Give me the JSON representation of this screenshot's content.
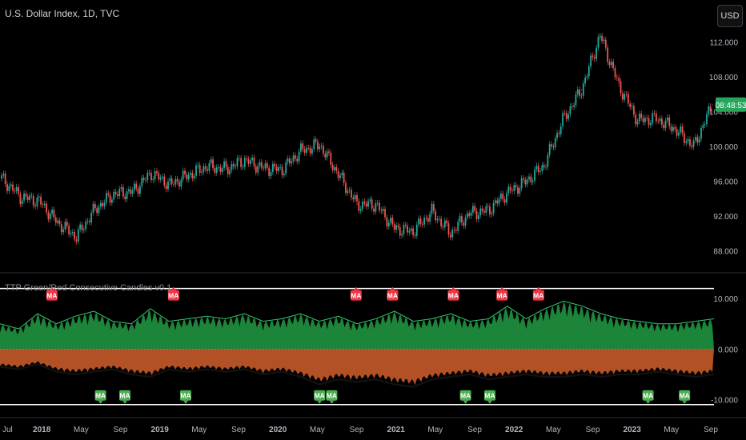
{
  "header": {
    "title": "U.S. Dollar Index, 1D, TVC",
    "currency_button": "USD",
    "indicator_title": "TTP Green/Red Consecutive Candles v0.1",
    "last_price_label": "08:48:53"
  },
  "colors": {
    "background": "#000000",
    "up": "#26a69a",
    "down": "#ef5350",
    "green_area": "#1e8c3c",
    "red_area": "#c65a2a",
    "ma_green": "#4caf50",
    "ma_red": "#f23645",
    "price_tag": "#26a65b"
  },
  "chart_data": [
    {
      "type": "line",
      "title": "U.S. Dollar Index, 1D, TVC",
      "x_ticks": [
        "Jul",
        "2018",
        "May",
        "Sep",
        "2019",
        "May",
        "Sep",
        "2020",
        "May",
        "Sep",
        "2021",
        "May",
        "Sep",
        "2022",
        "May",
        "Sep",
        "2023",
        "May",
        "Sep"
      ],
      "x": [
        "2017-07",
        "2017-09",
        "2017-11",
        "2018-01",
        "2018-03",
        "2018-05",
        "2018-07",
        "2018-09",
        "2018-11",
        "2019-01",
        "2019-03",
        "2019-05",
        "2019-07",
        "2019-09",
        "2019-11",
        "2020-01",
        "2020-03",
        "2020-04",
        "2020-06",
        "2020-08",
        "2020-10",
        "2020-12",
        "2021-01",
        "2021-03",
        "2021-05",
        "2021-07",
        "2021-09",
        "2021-11",
        "2022-01",
        "2022-03",
        "2022-05",
        "2022-07",
        "2022-09",
        "2022-11",
        "2023-01",
        "2023-03",
        "2023-05",
        "2023-07",
        "2023-09"
      ],
      "y": [
        96.3,
        94.2,
        93.7,
        91.2,
        89.6,
        92.8,
        94.5,
        94.8,
        96.9,
        95.6,
        96.7,
        97.7,
        97.4,
        98.4,
        97.5,
        97.3,
        99.5,
        100.2,
        96.8,
        93.3,
        93.3,
        90.6,
        90.2,
        92.5,
        90.0,
        92.3,
        92.6,
        94.6,
        95.9,
        97.8,
        103.0,
        106.5,
        112.8,
        107.0,
        103.0,
        103.2,
        102.0,
        100.0,
        104.8
      ],
      "yticks": [
        88.0,
        92.0,
        96.0,
        100.0,
        104.0,
        108.0,
        112.0
      ],
      "ylim": [
        86.0,
        115.0
      ]
    },
    {
      "type": "area",
      "title": "TTP Green/Red Consecutive Candles v0.1",
      "yticks": [
        10.0,
        0.0,
        -10.0
      ],
      "ylim": [
        -12.0,
        14.0
      ],
      "series": [
        {
          "name": "",
          "values": [
            5.0,
            4.0,
            7.0,
            5.0,
            6.5,
            7.5,
            5.5,
            5.0,
            8.0,
            5.5,
            6.0,
            6.5,
            6.0,
            7.0,
            5.5,
            6.0,
            7.0,
            5.5,
            6.5,
            5.0,
            6.0,
            7.5,
            5.5,
            6.0,
            7.0,
            5.5,
            6.0,
            8.5,
            6.0,
            8.0,
            9.5,
            8.5,
            7.0,
            6.0,
            5.5,
            5.0,
            5.0,
            5.5,
            6.0
          ]
        },
        {
          "name": "",
          "values": [
            -3.5,
            -4.0,
            -3.0,
            -4.5,
            -5.0,
            -4.5,
            -4.0,
            -5.0,
            -5.5,
            -4.0,
            -4.5,
            -4.0,
            -4.5,
            -4.0,
            -5.0,
            -4.5,
            -5.5,
            -7.0,
            -6.0,
            -6.5,
            -6.0,
            -7.0,
            -7.5,
            -6.0,
            -5.5,
            -5.0,
            -6.0,
            -5.5,
            -5.0,
            -5.5,
            -5.5,
            -5.0,
            -5.5,
            -5.0,
            -5.0,
            -4.5,
            -5.0,
            -5.5,
            -5.0
          ]
        }
      ],
      "markers": [
        {
          "label": "MA",
          "kind": "red",
          "x_index": 4
        },
        {
          "label": "MA",
          "kind": "red",
          "x_index": 14
        },
        {
          "label": "MA",
          "kind": "red",
          "x_index": 29
        },
        {
          "label": "MA",
          "kind": "red",
          "x_index": 32
        },
        {
          "label": "MA",
          "kind": "red",
          "x_index": 37
        },
        {
          "label": "MA",
          "kind": "red",
          "x_index": 41
        },
        {
          "label": "MA",
          "kind": "red",
          "x_index": 44
        },
        {
          "label": "MA",
          "kind": "green",
          "x_index": 8
        },
        {
          "label": "MA",
          "kind": "green",
          "x_index": 10
        },
        {
          "label": "MA",
          "kind": "green",
          "x_index": 15
        },
        {
          "label": "MA",
          "kind": "green",
          "x_index": 26
        },
        {
          "label": "MA",
          "kind": "green",
          "x_index": 27
        },
        {
          "label": "MA",
          "kind": "green",
          "x_index": 38
        },
        {
          "label": "MA",
          "kind": "green",
          "x_index": 40
        },
        {
          "label": "MA",
          "kind": "green",
          "x_index": 53
        },
        {
          "label": "MA",
          "kind": "green",
          "x_index": 56
        }
      ]
    }
  ]
}
